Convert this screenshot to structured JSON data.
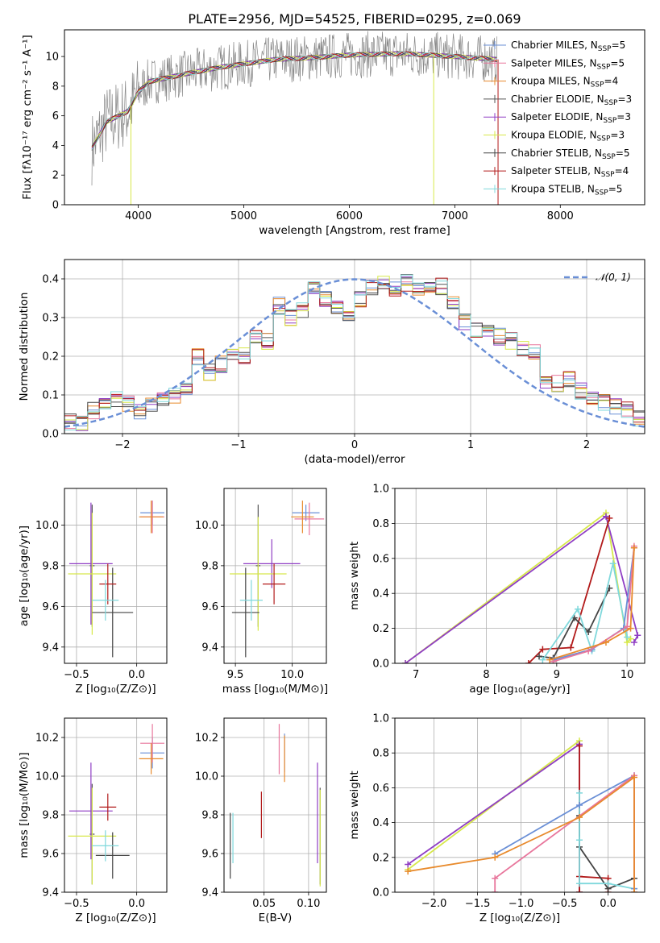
{
  "colors": {
    "chabrier_miles": "#6a8fd6",
    "salpeter_miles": "#e8769c",
    "kroupa_miles": "#e88a2c",
    "chabrier_elodie": "#555555",
    "salpeter_elodie": "#8f3ec4",
    "kroupa_elodie": "#d7e84a",
    "chabrier_stelib": "#444444",
    "salpeter_stelib": "#b21a1a",
    "kroupa_stelib": "#7fd8dc",
    "data": "#888888",
    "gaussian": "#6a8fd6",
    "grid": "#b0b0b0"
  },
  "chart_data": [
    {
      "id": "spectrum",
      "type": "line",
      "title": "PLATE=2956, MJD=54525, FIBERID=0295, z=0.069",
      "xlabel": "wavelength [Angstrom, rest frame]",
      "ylabel": "Flux [fλ10⁻¹⁷ erg cm⁻² s⁻¹ A⁻¹]",
      "xlim": [
        3300,
        8800
      ],
      "ylim": [
        0,
        11.8
      ],
      "xticks": [
        "4000",
        "5000",
        "6000",
        "7000",
        "8000"
      ],
      "yticks": [
        "0",
        "2",
        "4",
        "6",
        "8",
        "10"
      ],
      "grid": false,
      "legend_position": "top-right",
      "legend": [
        {
          "text": "Chabrier MILES, N",
          "sub": "SSP",
          "tail": "=5"
        },
        {
          "text": "Salpeter MILES, N",
          "sub": "SSP",
          "tail": "=5"
        },
        {
          "text": "Kroupa MILES, N",
          "sub": "SSP",
          "tail": "=4"
        },
        {
          "text": "Chabrier ELODIE, N",
          "sub": "SSP",
          "tail": "=3"
        },
        {
          "text": "Salpeter ELODIE, N",
          "sub": "SSP",
          "tail": "=3"
        },
        {
          "text": "Kroupa ELODIE, N",
          "sub": "SSP",
          "tail": "=3"
        },
        {
          "text": "Chabrier STELIB, N",
          "sub": "SSP",
          "tail": "=5"
        },
        {
          "text": "Salpeter STELIB, N",
          "sub": "SSP",
          "tail": "=4"
        },
        {
          "text": "Kroupa STELIB, N",
          "sub": "SSP",
          "tail": "=5"
        }
      ],
      "continuum": {
        "x": [
          3560,
          3700,
          3900,
          4000,
          4100,
          4300,
          4500,
          4800,
          5000,
          5300,
          5600,
          6000,
          6500,
          7000,
          7400
        ],
        "y": [
          3.8,
          5.6,
          6.3,
          7.6,
          8.3,
          8.6,
          8.9,
          9.3,
          9.5,
          9.8,
          9.9,
          10.1,
          10.2,
          10.0,
          9.8
        ]
      }
    },
    {
      "id": "residuals",
      "type": "bar",
      "xlabel": "(data-model)/error",
      "ylabel": "Normed distribution",
      "xlim": [
        -2.5,
        2.5
      ],
      "ylim": [
        0,
        0.45
      ],
      "xticks": [
        "−2",
        "−1",
        "0",
        "1",
        "2"
      ],
      "yticks": [
        "0.0",
        "0.1",
        "0.2",
        "0.3",
        "0.4"
      ],
      "grid": true,
      "legend_position": "top-right",
      "gaussian_label": "𝒩(0, 1)",
      "bin_width": 0.1,
      "bin_start": -2.5,
      "base_hist": [
        0.03,
        0.03,
        0.06,
        0.07,
        0.09,
        0.08,
        0.06,
        0.08,
        0.09,
        0.1,
        0.12,
        0.2,
        0.16,
        0.18,
        0.21,
        0.2,
        0.25,
        0.24,
        0.33,
        0.3,
        0.32,
        0.38,
        0.35,
        0.33,
        0.3,
        0.35,
        0.38,
        0.39,
        0.37,
        0.39,
        0.38,
        0.37,
        0.38,
        0.34,
        0.29,
        0.27,
        0.27,
        0.25,
        0.24,
        0.22,
        0.21,
        0.14,
        0.13,
        0.14,
        0.11,
        0.09,
        0.08,
        0.07,
        0.06,
        0.04
      ]
    },
    {
      "id": "z_age",
      "type": "scatter",
      "xlabel": "Z [log₁₀(Z/Z⊙)]",
      "ylabel": "age  [log₁₀(age/yr)]",
      "xlim": [
        -0.6,
        0.25
      ],
      "ylim": [
        9.32,
        10.18
      ],
      "xticks": [
        "−0.5",
        "0.0"
      ],
      "yticks": [
        "9.4",
        "9.6",
        "9.8",
        "10.0"
      ],
      "grid": true,
      "points": [
        {
          "series": "chabrier_miles",
          "x": 0.13,
          "y": 10.06,
          "xerr": 0.1,
          "yerr": 0.06
        },
        {
          "series": "salpeter_miles",
          "x": 0.13,
          "y": 10.04,
          "xerr": 0.1,
          "yerr": 0.08
        },
        {
          "series": "kroupa_miles",
          "x": 0.12,
          "y": 10.04,
          "xerr": 0.1,
          "yerr": 0.08
        },
        {
          "series": "chabrier_elodie",
          "x": -0.37,
          "y": 9.8,
          "xerr": 0.02,
          "yerr": 0.3
        },
        {
          "series": "salpeter_elodie",
          "x": -0.38,
          "y": 9.81,
          "xerr": 0.18,
          "yerr": 0.3
        },
        {
          "series": "kroupa_elodie",
          "x": -0.37,
          "y": 9.76,
          "xerr": 0.2,
          "yerr": 0.3
        },
        {
          "series": "chabrier_stelib",
          "x": -0.2,
          "y": 9.57,
          "xerr": 0.17,
          "yerr": 0.22
        },
        {
          "series": "salpeter_stelib",
          "x": -0.24,
          "y": 9.71,
          "xerr": 0.07,
          "yerr": 0.1
        },
        {
          "series": "kroupa_stelib",
          "x": -0.26,
          "y": 9.63,
          "xerr": 0.11,
          "yerr": 0.1
        }
      ]
    },
    {
      "id": "mass_age",
      "type": "scatter",
      "xlabel": "mass [log₁₀(M/M⊙)]",
      "ylabel": "",
      "xlim": [
        9.4,
        10.3
      ],
      "ylim": [
        9.32,
        10.18
      ],
      "xticks": [
        "9.5",
        "10.0"
      ],
      "yticks": [
        "9.4",
        "9.6",
        "9.8",
        "10.0"
      ],
      "grid": true,
      "points": [
        {
          "series": "chabrier_miles",
          "x": 10.12,
          "y": 10.06,
          "xerr": 0.12,
          "yerr": 0.04
        },
        {
          "series": "salpeter_miles",
          "x": 10.15,
          "y": 10.03,
          "xerr": 0.13,
          "yerr": 0.08
        },
        {
          "series": "kroupa_miles",
          "x": 10.09,
          "y": 10.04,
          "xerr": 0.1,
          "yerr": 0.08
        },
        {
          "series": "chabrier_elodie",
          "x": 9.7,
          "y": 9.8,
          "xerr": 0.02,
          "yerr": 0.3
        },
        {
          "series": "salpeter_elodie",
          "x": 9.82,
          "y": 9.81,
          "xerr": 0.25,
          "yerr": 0.12
        },
        {
          "series": "kroupa_elodie",
          "x": 9.7,
          "y": 9.76,
          "xerr": 0.25,
          "yerr": 0.28
        },
        {
          "series": "chabrier_stelib",
          "x": 9.59,
          "y": 9.57,
          "xerr": 0.12,
          "yerr": 0.22
        },
        {
          "series": "salpeter_stelib",
          "x": 9.84,
          "y": 9.71,
          "xerr": 0.1,
          "yerr": 0.1
        },
        {
          "series": "kroupa_stelib",
          "x": 9.64,
          "y": 9.63,
          "xerr": 0.1,
          "yerr": 0.1
        }
      ]
    },
    {
      "id": "age_weight",
      "type": "line",
      "xlabel": "age  [log₁₀(age/yr)]",
      "ylabel": "mass weight",
      "xlim": [
        6.7,
        10.25
      ],
      "ylim": [
        0,
        1.0
      ],
      "xticks": [
        "7",
        "8",
        "9",
        "10"
      ],
      "yticks": [
        "0.0",
        "0.2",
        "0.4",
        "0.6",
        "0.8",
        "1.0"
      ],
      "grid": true,
      "series": [
        {
          "name": "kroupa_elodie",
          "x": [
            6.85,
            9.7,
            10.0,
            10.05
          ],
          "y": [
            0.0,
            0.86,
            0.12,
            0.14
          ]
        },
        {
          "name": "salpeter_elodie",
          "x": [
            6.85,
            9.7,
            10.15,
            10.1
          ],
          "y": [
            0.0,
            0.84,
            0.16,
            0.12
          ]
        },
        {
          "name": "salpeter_stelib",
          "x": [
            8.6,
            8.8,
            9.2,
            9.75
          ],
          "y": [
            0.0,
            0.08,
            0.09,
            0.83
          ]
        },
        {
          "name": "chabrier_stelib",
          "x": [
            8.75,
            8.95,
            9.25,
            9.45,
            9.75
          ],
          "y": [
            0.04,
            0.03,
            0.26,
            0.18,
            0.43
          ]
        },
        {
          "name": "kroupa_stelib",
          "x": [
            8.8,
            9.3,
            9.5,
            9.8,
            10.0
          ],
          "y": [
            0.02,
            0.31,
            0.07,
            0.57,
            0.15
          ]
        },
        {
          "name": "chabrier_miles",
          "x": [
            8.95,
            9.5,
            9.95,
            10.1
          ],
          "y": [
            0.02,
            0.08,
            0.2,
            0.66
          ]
        },
        {
          "name": "salpeter_miles",
          "x": [
            8.95,
            9.45,
            10.0,
            10.1
          ],
          "y": [
            0.01,
            0.07,
            0.21,
            0.67
          ]
        },
        {
          "name": "kroupa_miles",
          "x": [
            8.9,
            9.7,
            10.05,
            10.1
          ],
          "y": [
            0.02,
            0.12,
            0.2,
            0.66
          ]
        }
      ]
    },
    {
      "id": "z_mass",
      "type": "scatter",
      "xlabel": "Z [log₁₀(Z/Z⊙)]",
      "ylabel": "mass [log₁₀(M/M⊙)]",
      "xlim": [
        -0.6,
        0.25
      ],
      "ylim": [
        9.4,
        10.3
      ],
      "xticks": [
        "−0.5",
        "0.0"
      ],
      "yticks": [
        "9.4",
        "9.6",
        "9.8",
        "10.0",
        "10.2"
      ],
      "grid": true,
      "points": [
        {
          "series": "chabrier_miles",
          "x": 0.13,
          "y": 10.12,
          "xerr": 0.1,
          "yerr": 0.08
        },
        {
          "series": "salpeter_miles",
          "x": 0.13,
          "y": 10.17,
          "xerr": 0.1,
          "yerr": 0.1
        },
        {
          "series": "kroupa_miles",
          "x": 0.12,
          "y": 10.09,
          "xerr": 0.1,
          "yerr": 0.08
        },
        {
          "series": "chabrier_elodie",
          "x": -0.37,
          "y": 9.7,
          "xerr": 0.02,
          "yerr": 0.26
        },
        {
          "series": "salpeter_elodie",
          "x": -0.38,
          "y": 9.82,
          "xerr": 0.18,
          "yerr": 0.25
        },
        {
          "series": "kroupa_elodie",
          "x": -0.37,
          "y": 9.69,
          "xerr": 0.2,
          "yerr": 0.25
        },
        {
          "series": "chabrier_stelib",
          "x": -0.2,
          "y": 9.59,
          "xerr": 0.14,
          "yerr": 0.12
        },
        {
          "series": "salpeter_stelib",
          "x": -0.24,
          "y": 9.84,
          "xerr": 0.07,
          "yerr": 0.07
        },
        {
          "series": "kroupa_stelib",
          "x": -0.26,
          "y": 9.64,
          "xerr": 0.11,
          "yerr": 0.08
        }
      ]
    },
    {
      "id": "ebv_mass",
      "type": "scatter",
      "xlabel": "E(B-V)",
      "ylabel": "",
      "xlim": [
        0.005,
        0.12
      ],
      "ylim": [
        9.4,
        10.3
      ],
      "xticks": [
        "0.05",
        "0.10"
      ],
      "yticks": [
        "9.4",
        "9.6",
        "9.8",
        "10.0",
        "10.2"
      ],
      "grid": true,
      "points": [
        {
          "series": "chabrier_miles",
          "x": 0.073,
          "y": 10.12,
          "xerr": 0.0,
          "yerr": 0.1
        },
        {
          "series": "salpeter_miles",
          "x": 0.067,
          "y": 10.14,
          "xerr": 0.0,
          "yerr": 0.13
        },
        {
          "series": "kroupa_miles",
          "x": 0.073,
          "y": 10.09,
          "xerr": 0.0,
          "yerr": 0.12
        },
        {
          "series": "chabrier_elodie",
          "x": 0.113,
          "y": 9.69,
          "xerr": 0.0,
          "yerr": 0.25
        },
        {
          "series": "salpeter_elodie",
          "x": 0.11,
          "y": 9.81,
          "xerr": 0.0,
          "yerr": 0.26
        },
        {
          "series": "kroupa_elodie",
          "x": 0.113,
          "y": 9.68,
          "xerr": 0.0,
          "yerr": 0.25
        },
        {
          "series": "chabrier_stelib",
          "x": 0.012,
          "y": 9.64,
          "xerr": 0.0,
          "yerr": 0.17
        },
        {
          "series": "salpeter_stelib",
          "x": 0.047,
          "y": 9.8,
          "xerr": 0.0,
          "yerr": 0.12
        },
        {
          "series": "kroupa_stelib",
          "x": 0.015,
          "y": 9.68,
          "xerr": 0.0,
          "yerr": 0.13
        }
      ]
    },
    {
      "id": "z_weight",
      "type": "line",
      "xlabel": "Z [log₁₀(Z/Z⊙)]",
      "ylabel": "mass weight",
      "xlim": [
        -2.45,
        0.42
      ],
      "ylim": [
        0,
        1.0
      ],
      "xticks": [
        "−2.0",
        "−1.5",
        "−1.0",
        "−0.5",
        "0.0"
      ],
      "yticks": [
        "0.0",
        "0.2",
        "0.4",
        "0.6",
        "0.8",
        "1.0"
      ],
      "grid": true,
      "series": [
        {
          "name": "kroupa_elodie",
          "x": [
            -2.3,
            -0.33,
            -0.33
          ],
          "y": [
            0.13,
            0.87,
            0.0
          ]
        },
        {
          "name": "salpeter_elodie",
          "x": [
            -2.3,
            -0.33,
            -0.33
          ],
          "y": [
            0.16,
            0.85,
            0.0
          ]
        },
        {
          "name": "salpeter_stelib",
          "x": [
            -0.33,
            -0.33,
            -0.33,
            0.0,
            0.0
          ],
          "y": [
            0.84,
            0.0,
            0.09,
            0.08,
            0.0
          ]
        },
        {
          "name": "chabrier_stelib",
          "x": [
            -0.33,
            -0.33,
            0.0,
            0.3
          ],
          "y": [
            0.44,
            0.26,
            0.02,
            0.08
          ]
        },
        {
          "name": "kroupa_stelib",
          "x": [
            -0.33,
            -0.33,
            -0.33,
            0.0,
            0.3
          ],
          "y": [
            0.57,
            0.3,
            0.05,
            0.05,
            0.02
          ]
        },
        {
          "name": "chabrier_miles",
          "x": [
            -1.3,
            -0.33,
            0.3,
            0.3
          ],
          "y": [
            0.22,
            0.5,
            0.67,
            0.02
          ]
        },
        {
          "name": "salpeter_miles",
          "x": [
            -1.3,
            -1.3,
            0.3,
            0.3
          ],
          "y": [
            0.0,
            0.08,
            0.67,
            0.0
          ]
        },
        {
          "name": "kroupa_miles",
          "x": [
            -2.3,
            -1.3,
            -0.33,
            0.3,
            0.3
          ],
          "y": [
            0.12,
            0.2,
            0.43,
            0.66,
            0.0
          ]
        }
      ]
    }
  ]
}
